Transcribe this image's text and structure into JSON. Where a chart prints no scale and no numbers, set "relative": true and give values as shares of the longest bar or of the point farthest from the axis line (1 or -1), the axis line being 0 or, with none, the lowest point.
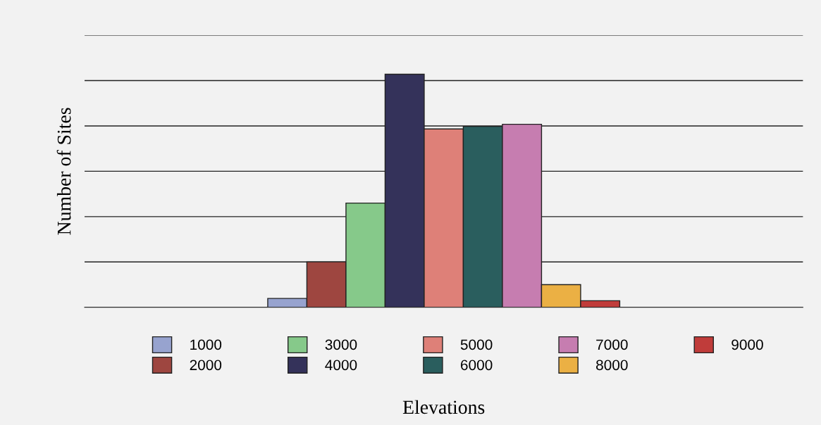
{
  "chart_data": {
    "type": "bar",
    "relative": true,
    "xlabel": "Elevations",
    "ylabel": "Number of Sites",
    "categories": [
      null
    ],
    "series": [
      {
        "name": "1000",
        "color": "#97a3cf",
        "values": [
          0.038
        ]
      },
      {
        "name": "2000",
        "color": "#9e4640",
        "values": [
          0.195
        ]
      },
      {
        "name": "3000",
        "color": "#86c98a",
        "values": [
          0.447
        ]
      },
      {
        "name": "4000",
        "color": "#34325a",
        "values": [
          1
        ]
      },
      {
        "name": "5000",
        "color": "#de8078",
        "values": [
          0.765
        ]
      },
      {
        "name": "6000",
        "color": "#2a5e5e",
        "values": [
          0.776
        ]
      },
      {
        "name": "7000",
        "color": "#c67db0",
        "values": [
          0.785
        ]
      },
      {
        "name": "8000",
        "color": "#ebb044",
        "values": [
          0.097
        ]
      },
      {
        "name": "9000",
        "color": "#c03c3a",
        "values": [
          0.028
        ]
      }
    ],
    "grid": "y",
    "legend": "bottom",
    "tick_labels": false
  }
}
